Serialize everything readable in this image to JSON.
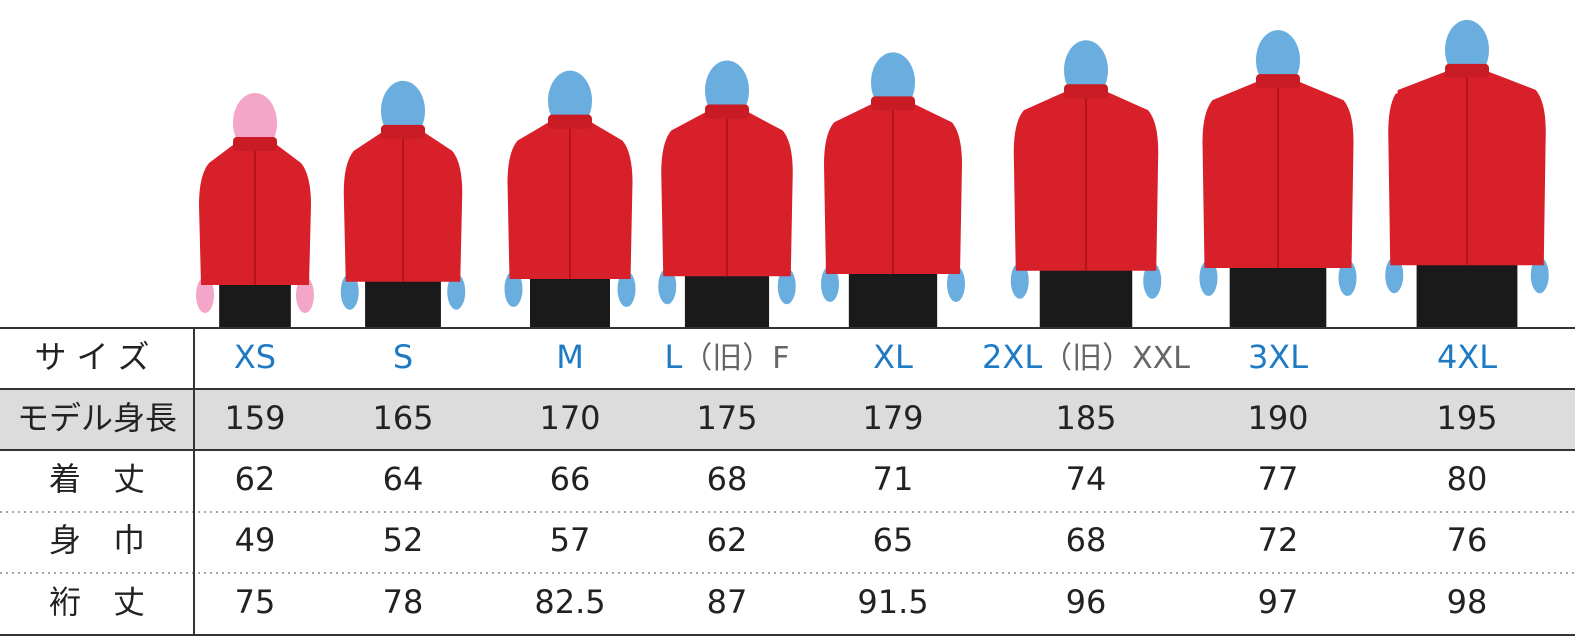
{
  "table": {
    "header": {
      "label": "サイズ",
      "sizes": [
        {
          "label": "XS"
        },
        {
          "label": "S"
        },
        {
          "label": "M"
        },
        {
          "label": "L",
          "note": "（旧）F"
        },
        {
          "label": "XL"
        },
        {
          "label": "2XL",
          "note": "（旧）XXL"
        },
        {
          "label": "3XL"
        },
        {
          "label": "4XL"
        }
      ]
    },
    "rows": [
      {
        "label": "モデル身長",
        "values": [
          159,
          165,
          170,
          175,
          179,
          185,
          190,
          195
        ]
      },
      {
        "label": "着　丈",
        "values": [
          62,
          64,
          66,
          68,
          71,
          74,
          77,
          80
        ]
      },
      {
        "label": "身　巾",
        "values": [
          49,
          52,
          57,
          62,
          65,
          68,
          72,
          76
        ]
      },
      {
        "label": "裄　丈",
        "values": [
          75,
          78,
          82.5,
          87,
          91.5,
          96,
          97,
          98
        ]
      }
    ]
  }
}
